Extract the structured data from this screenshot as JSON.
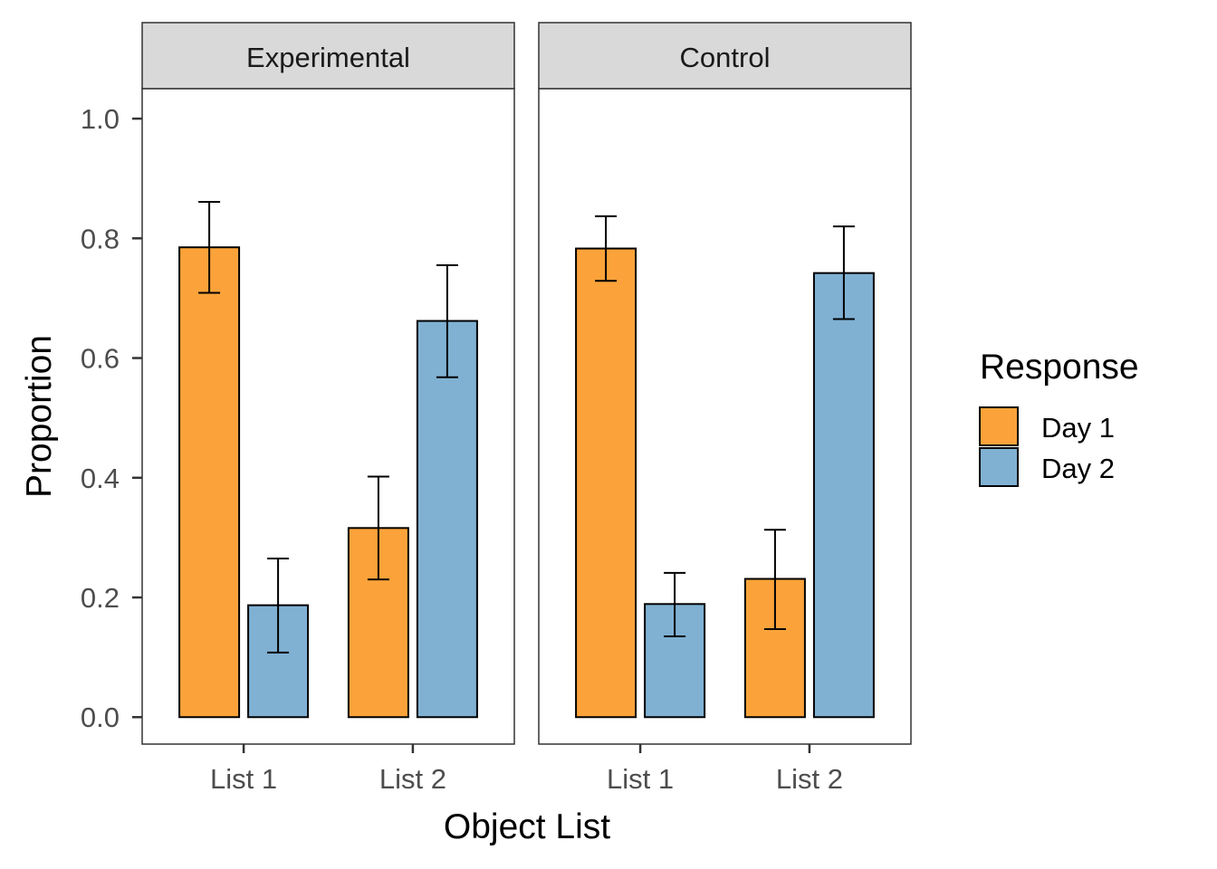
{
  "chart_data": {
    "type": "bar",
    "xlabel": "Object List",
    "ylabel": "Proportion",
    "ylim": [
      -0.045,
      1.05
    ],
    "yticks": [
      "0.0",
      "0.2",
      "0.4",
      "0.6",
      "0.8",
      "1.0"
    ],
    "ytick_values": [
      0,
      0.2,
      0.4,
      0.6,
      0.8,
      1.0
    ],
    "categories": [
      "List 1",
      "List 2"
    ],
    "grid": false,
    "legend": {
      "title": "Response",
      "placement": "right",
      "entries": [
        {
          "name": "Day 1",
          "color": "#FBA33A"
        },
        {
          "name": "Day 2",
          "color": "#80B1D3"
        }
      ]
    },
    "panels": [
      {
        "title": "Experimental",
        "series": [
          {
            "name": "Day 1",
            "values": [
              0.785,
              0.316
            ],
            "err_low": [
              0.709,
              0.23
            ],
            "err_high": [
              0.861,
              0.402
            ]
          },
          {
            "name": "Day 2",
            "values": [
              0.187,
              0.662
            ],
            "err_low": [
              0.108,
              0.568
            ],
            "err_high": [
              0.265,
              0.755
            ]
          }
        ]
      },
      {
        "title": "Control",
        "series": [
          {
            "name": "Day 1",
            "values": [
              0.783,
              0.231
            ],
            "err_low": [
              0.729,
              0.147
            ],
            "err_high": [
              0.837,
              0.313
            ]
          },
          {
            "name": "Day 2",
            "values": [
              0.189,
              0.742
            ],
            "err_low": [
              0.135,
              0.665
            ],
            "err_high": [
              0.241,
              0.82
            ]
          }
        ]
      }
    ]
  }
}
